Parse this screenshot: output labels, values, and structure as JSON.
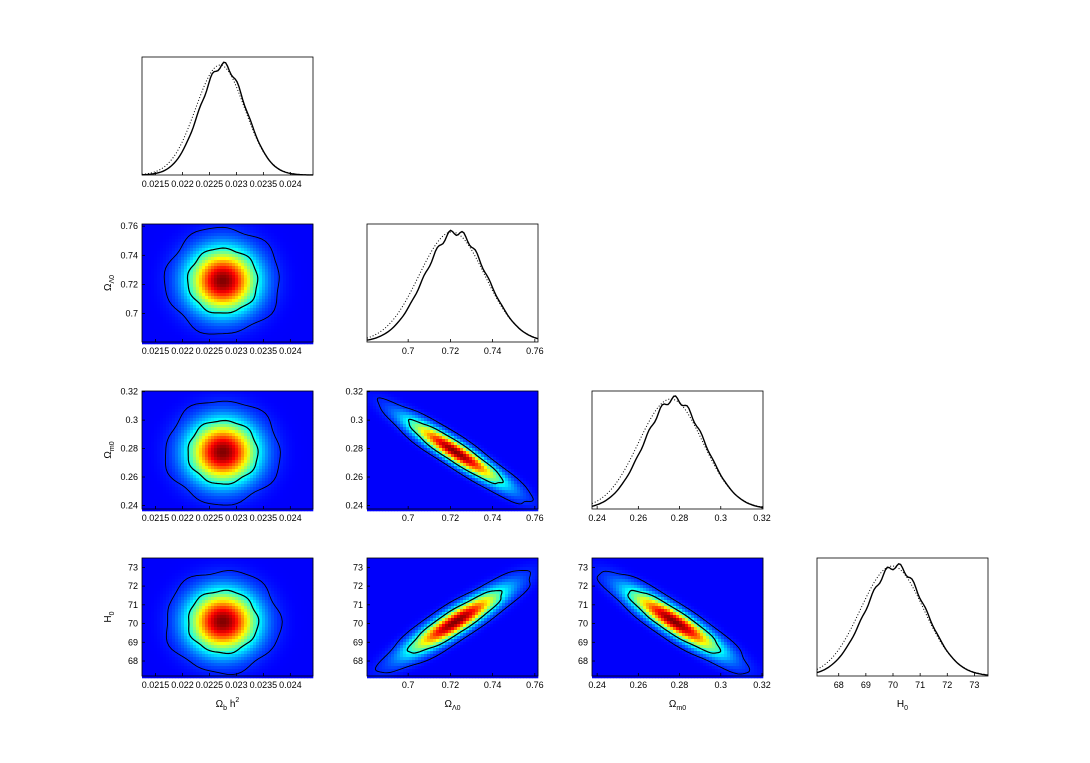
{
  "parameters": [
    {
      "id": "omega_b_h2",
      "label": "Ω",
      "sub": "b",
      "tail": " h",
      "sup": "2",
      "ticks": [
        0.0215,
        0.022,
        0.0225,
        0.023,
        0.0235,
        0.024
      ],
      "tick_labels": [
        "0.0215",
        "0.022",
        "0.0225",
        "0.023",
        "0.0235",
        "0.024"
      ],
      "range": [
        0.02125,
        0.02442
      ],
      "mean": 0.02275,
      "sd": 0.000428
    },
    {
      "id": "omega_lambda0",
      "label": "Ω",
      "sub": "Λ0",
      "tail": "",
      "sup": "",
      "ticks": [
        0.7,
        0.72,
        0.74,
        0.76
      ],
      "tick_labels": [
        "0.7",
        "0.72",
        "0.74",
        "0.76"
      ],
      "range": [
        0.6805,
        0.7615
      ],
      "mean": 0.7225,
      "sd": 0.0147
    },
    {
      "id": "omega_m0",
      "label": "Ω",
      "sub": "m0",
      "tail": "",
      "sup": "",
      "ticks": [
        0.24,
        0.26,
        0.28,
        0.3,
        0.32
      ],
      "tick_labels": [
        "0.24",
        "0.26",
        "0.28",
        "0.3",
        "0.32"
      ],
      "range": [
        0.2375,
        0.3205
      ],
      "mean": 0.2775,
      "sd": 0.0147
    },
    {
      "id": "h0",
      "label": "H",
      "sub": "0",
      "tail": "",
      "sup": "",
      "ticks": [
        68,
        69,
        70,
        71,
        72,
        73
      ],
      "tick_labels": [
        "68",
        "69",
        "70",
        "71",
        "72",
        "73"
      ],
      "range": [
        67.2,
        73.5
      ],
      "mean": 70.1,
      "sd": 1.1
    }
  ],
  "chart_data": {
    "type": "heatmap",
    "layout": "triangle-corner-plot",
    "diagonal": "1D marginal posterior (solid = marginalized, dotted = mean likelihood)",
    "off_diagonal": "2D posterior density heatmap with 68% and 95% contours",
    "correlations": {
      "omega_lambda0|omega_b_h2": 0.0,
      "omega_m0|omega_b_h2": 0.0,
      "omega_m0|omega_lambda0": -0.93,
      "h0|omega_b_h2": 0.0,
      "h0|omega_lambda0": 0.9,
      "h0|omega_m0": -0.9
    },
    "colormap": [
      "#00008f",
      "#0000ff",
      "#0080ff",
      "#00ffff",
      "#80ff80",
      "#ffff00",
      "#ff8000",
      "#ff0000",
      "#800000"
    ],
    "grid": false
  }
}
